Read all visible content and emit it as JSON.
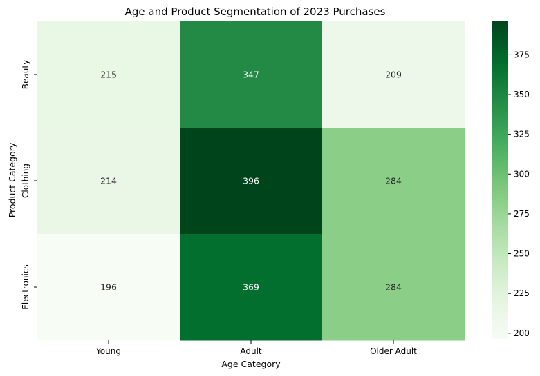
{
  "chart_data": {
    "type": "heatmap",
    "title": "Age and Product Segmentation of 2023 Purchases",
    "xlabel": "Age Category",
    "ylabel": "Product Category",
    "x_categories": [
      "Young",
      "Adult",
      "Older Adult"
    ],
    "y_categories": [
      "Beauty",
      "Clothing",
      "Electronics"
    ],
    "values": [
      [
        215,
        347,
        209
      ],
      [
        214,
        396,
        284
      ],
      [
        196,
        369,
        284
      ]
    ],
    "colormap": "Greens",
    "vmin": 196,
    "vmax": 396,
    "colorbar_ticks": [
      200,
      225,
      250,
      275,
      300,
      325,
      350,
      375
    ],
    "annotations": true,
    "colors": {
      "low": "#f7fcf5",
      "high": "#00441b"
    }
  }
}
